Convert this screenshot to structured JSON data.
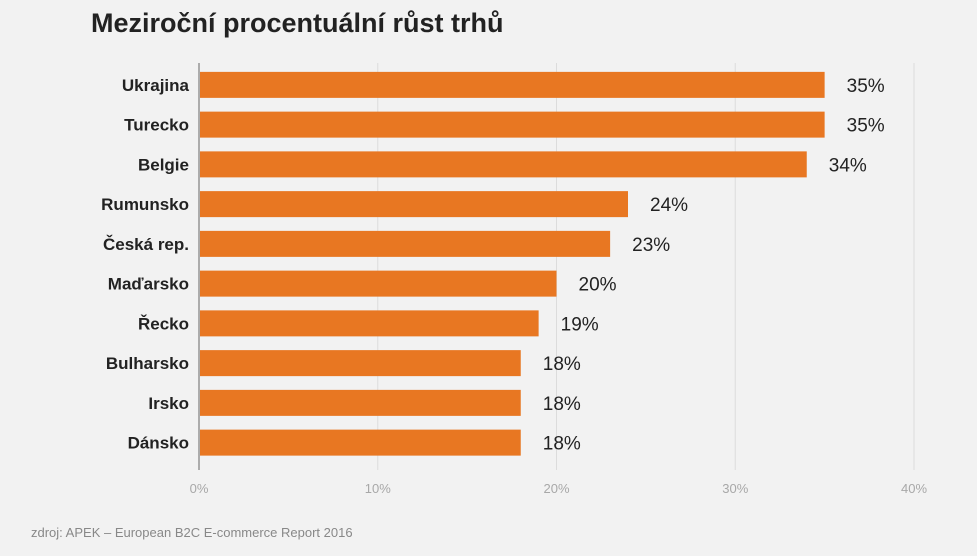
{
  "chart_data": {
    "type": "bar",
    "orientation": "horizontal",
    "title": "Meziroční procentuální růst trhů",
    "categories": [
      "Ukrajina",
      "Turecko",
      "Belgie",
      "Rumunsko",
      "Česká rep.",
      "Maďarsko",
      "Řecko",
      "Bulharsko",
      "Irsko",
      "Dánsko"
    ],
    "values": [
      35,
      35,
      34,
      24,
      23,
      20,
      19,
      18,
      18,
      18
    ],
    "value_labels": [
      "35%",
      "35%",
      "34%",
      "24%",
      "23%",
      "20%",
      "19%",
      "18%",
      "18%",
      "18%"
    ],
    "xlim": [
      0,
      40
    ],
    "x_ticks": [
      0,
      10,
      20,
      30,
      40
    ],
    "x_tick_labels": [
      "0%",
      "10%",
      "20%",
      "30%",
      "40%"
    ],
    "xlabel": "",
    "ylabel": "",
    "grid": true,
    "bar_color": "#e87722"
  },
  "source_note": "zdroj: APEK – European B2C E-commerce Report 2016"
}
